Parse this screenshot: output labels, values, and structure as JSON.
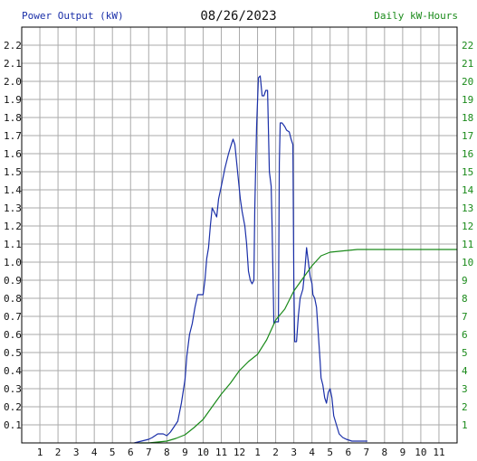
{
  "header": {
    "left_title": "Power Output (kW)",
    "date": "08/26/2023",
    "right_title": "Daily kW-Hours"
  },
  "colors": {
    "power": "#1a2fa8",
    "energy": "#1a8a1a",
    "grid": "#aaaaaa",
    "axis": "#000000"
  },
  "chart_data": {
    "type": "line",
    "title": "08/26/2023",
    "xlabel": "",
    "x_ticks": [
      "1",
      "2",
      "3",
      "4",
      "5",
      "6",
      "7",
      "8",
      "9",
      "10",
      "11",
      "12",
      "1",
      "2",
      "3",
      "4",
      "5",
      "6",
      "7",
      "8",
      "9",
      "10",
      "11"
    ],
    "xlim": [
      0,
      24
    ],
    "y_left": {
      "label": "Power Output (kW)",
      "ylim": [
        0,
        2.3
      ],
      "ticks": [
        "0.1",
        "0.2",
        "0.3",
        "0.4",
        "0.5",
        "0.6",
        "0.7",
        "0.8",
        "0.9",
        "1.0",
        "1.1",
        "1.2",
        "1.3",
        "1.4",
        "1.5",
        "1.6",
        "1.7",
        "1.8",
        "1.9",
        "2.0",
        "2.1",
        "2.2"
      ]
    },
    "y_right": {
      "label": "Daily kW-Hours",
      "ylim": [
        0,
        23
      ],
      "ticks": [
        "1",
        "2",
        "3",
        "4",
        "5",
        "6",
        "7",
        "8",
        "9",
        "10",
        "11",
        "12",
        "13",
        "14",
        "15",
        "16",
        "17",
        "18",
        "19",
        "20",
        "21",
        "22"
      ]
    },
    "grid": true,
    "series": [
      {
        "name": "Power Output (kW)",
        "axis": "left",
        "points": [
          [
            6.2,
            0
          ],
          [
            6.6,
            0.01
          ],
          [
            7.0,
            0.02
          ],
          [
            7.2,
            0.03
          ],
          [
            7.5,
            0.05
          ],
          [
            7.8,
            0.05
          ],
          [
            8.0,
            0.04
          ],
          [
            8.2,
            0.06
          ],
          [
            8.4,
            0.09
          ],
          [
            8.6,
            0.12
          ],
          [
            8.8,
            0.22
          ],
          [
            9.0,
            0.35
          ],
          [
            9.1,
            0.48
          ],
          [
            9.25,
            0.6
          ],
          [
            9.4,
            0.66
          ],
          [
            9.55,
            0.75
          ],
          [
            9.7,
            0.82
          ],
          [
            10.0,
            0.82
          ],
          [
            10.1,
            0.9
          ],
          [
            10.2,
            1.02
          ],
          [
            10.3,
            1.08
          ],
          [
            10.4,
            1.2
          ],
          [
            10.5,
            1.3
          ],
          [
            10.6,
            1.28
          ],
          [
            10.75,
            1.25
          ],
          [
            10.85,
            1.35
          ],
          [
            11.0,
            1.42
          ],
          [
            11.2,
            1.52
          ],
          [
            11.3,
            1.56
          ],
          [
            11.4,
            1.6
          ],
          [
            11.55,
            1.65
          ],
          [
            11.65,
            1.68
          ],
          [
            11.75,
            1.65
          ],
          [
            11.85,
            1.55
          ],
          [
            11.95,
            1.45
          ],
          [
            12.05,
            1.35
          ],
          [
            12.15,
            1.28
          ],
          [
            12.3,
            1.2
          ],
          [
            12.4,
            1.1
          ],
          [
            12.5,
            0.95
          ],
          [
            12.6,
            0.9
          ],
          [
            12.7,
            0.88
          ],
          [
            12.8,
            0.9
          ],
          [
            12.85,
            1.3
          ],
          [
            12.95,
            1.75
          ],
          [
            13.05,
            2.02
          ],
          [
            13.15,
            2.03
          ],
          [
            13.25,
            1.92
          ],
          [
            13.35,
            1.92
          ],
          [
            13.45,
            1.95
          ],
          [
            13.55,
            1.95
          ],
          [
            13.65,
            1.5
          ],
          [
            13.75,
            1.42
          ],
          [
            13.8,
            1.2
          ],
          [
            13.9,
            0.66
          ],
          [
            14.0,
            0.67
          ],
          [
            14.15,
            0.67
          ],
          [
            14.2,
            1.55
          ],
          [
            14.25,
            1.77
          ],
          [
            14.35,
            1.77
          ],
          [
            14.5,
            1.75
          ],
          [
            14.6,
            1.73
          ],
          [
            14.75,
            1.72
          ],
          [
            14.85,
            1.68
          ],
          [
            14.95,
            1.65
          ],
          [
            15.0,
            0.9
          ],
          [
            15.05,
            0.56
          ],
          [
            15.15,
            0.56
          ],
          [
            15.25,
            0.7
          ],
          [
            15.35,
            0.8
          ],
          [
            15.5,
            0.85
          ],
          [
            15.6,
            0.95
          ],
          [
            15.7,
            1.08
          ],
          [
            15.8,
            1.0
          ],
          [
            15.9,
            0.92
          ],
          [
            16.0,
            0.88
          ],
          [
            16.05,
            0.82
          ],
          [
            16.15,
            0.8
          ],
          [
            16.25,
            0.75
          ],
          [
            16.35,
            0.6
          ],
          [
            16.45,
            0.45
          ],
          [
            16.5,
            0.36
          ],
          [
            16.6,
            0.32
          ],
          [
            16.7,
            0.25
          ],
          [
            16.8,
            0.22
          ],
          [
            16.9,
            0.28
          ],
          [
            17.0,
            0.3
          ],
          [
            17.1,
            0.25
          ],
          [
            17.2,
            0.15
          ],
          [
            17.35,
            0.1
          ],
          [
            17.5,
            0.05
          ],
          [
            17.7,
            0.03
          ],
          [
            17.9,
            0.02
          ],
          [
            18.2,
            0.01
          ],
          [
            18.6,
            0.01
          ],
          [
            19.05,
            0.01
          ]
        ]
      },
      {
        "name": "Daily kW-Hours",
        "axis": "right",
        "points": [
          [
            6.5,
            0
          ],
          [
            7.0,
            0
          ],
          [
            7.5,
            0.05
          ],
          [
            8.0,
            0.1
          ],
          [
            8.5,
            0.25
          ],
          [
            9.0,
            0.45
          ],
          [
            9.5,
            0.85
          ],
          [
            10.0,
            1.3
          ],
          [
            10.5,
            2.0
          ],
          [
            11.0,
            2.7
          ],
          [
            11.5,
            3.3
          ],
          [
            12.0,
            4.0
          ],
          [
            12.5,
            4.5
          ],
          [
            13.0,
            4.9
          ],
          [
            13.5,
            5.7
          ],
          [
            14.0,
            6.8
          ],
          [
            14.5,
            7.4
          ],
          [
            15.0,
            8.4
          ],
          [
            15.5,
            9.1
          ],
          [
            16.0,
            9.8
          ],
          [
            16.5,
            10.35
          ],
          [
            17.0,
            10.55
          ],
          [
            17.5,
            10.6
          ],
          [
            18.0,
            10.65
          ],
          [
            18.5,
            10.7
          ],
          [
            24.0,
            10.7
          ]
        ]
      }
    ]
  }
}
